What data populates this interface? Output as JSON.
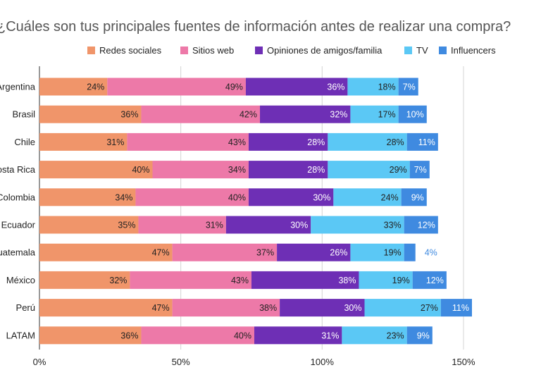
{
  "chart_data": {
    "type": "bar",
    "orientation": "horizontal",
    "stacked": true,
    "title": "¿Cuáles son tus principales fuentes de información antes de realizar una compra?",
    "xlabel": "",
    "ylabel": "",
    "xlim": [
      0,
      150
    ],
    "x_ticks": [
      "0%",
      "50%",
      "100%",
      "150%"
    ],
    "grid": true,
    "legend_position": "top",
    "categories": [
      "Argentina",
      "Brasil",
      "Chile",
      "Costa Rica",
      "Colombia",
      "Ecuador",
      "Guatemala",
      "México",
      "Perú",
      "LATAM"
    ],
    "series": [
      {
        "name": "Redes sociales",
        "color": "#f0956a",
        "values": [
          24,
          36,
          31,
          40,
          34,
          35,
          47,
          32,
          47,
          36
        ]
      },
      {
        "name": "Sitios web",
        "color": "#ed79a8",
        "values": [
          49,
          42,
          43,
          34,
          40,
          31,
          37,
          43,
          38,
          40
        ]
      },
      {
        "name": "Opiniones de amigos/familia",
        "color": "#6e2fb5",
        "values": [
          36,
          32,
          28,
          28,
          30,
          30,
          26,
          38,
          30,
          31
        ]
      },
      {
        "name": "TV",
        "color": "#5bc8f5",
        "values": [
          18,
          17,
          28,
          29,
          24,
          33,
          19,
          19,
          27,
          23
        ]
      },
      {
        "name": "Influencers",
        "color": "#3f8ae0",
        "values": [
          7,
          10,
          11,
          7,
          9,
          12,
          4,
          12,
          11,
          9
        ]
      }
    ]
  }
}
